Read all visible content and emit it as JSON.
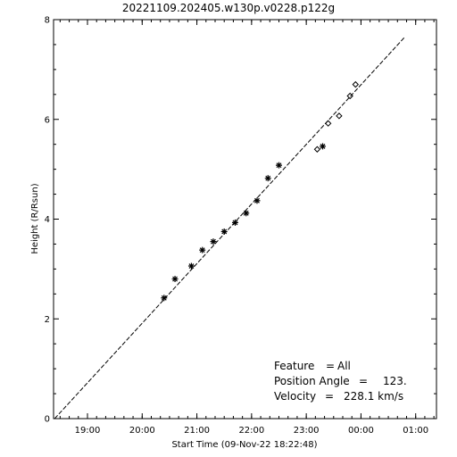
{
  "chart_data": {
    "type": "scatter",
    "title": "20221109.202405.w130p.v0228.p122g",
    "xlabel": "Start Time (09-Nov-22 18:22:48)",
    "ylabel": "Height (R/Rsun)",
    "x_tick_labels": [
      "19:00",
      "20:00",
      "21:00",
      "22:00",
      "23:00",
      "00:00",
      "01:00"
    ],
    "x_tick_times": [
      "2022-11-09 19:00",
      "2022-11-09 20:00",
      "2022-11-09 21:00",
      "2022-11-09 22:00",
      "2022-11-09 23:00",
      "2022-11-10 00:00",
      "2022-11-10 01:00"
    ],
    "xlim": [
      "2022-11-09 18:22:48",
      "2022-11-10 01:22:48"
    ],
    "ylim": [
      0,
      8
    ],
    "y_ticks": [
      0,
      2,
      4,
      6,
      8
    ],
    "grid": false,
    "series": [
      {
        "marker": "asterisk",
        "points": [
          {
            "x": "2022-11-09 20:24",
            "y": 2.42
          },
          {
            "x": "2022-11-09 20:36",
            "y": 2.8
          },
          {
            "x": "2022-11-09 20:54",
            "y": 3.06
          },
          {
            "x": "2022-11-09 21:06",
            "y": 3.38
          },
          {
            "x": "2022-11-09 21:18",
            "y": 3.55
          },
          {
            "x": "2022-11-09 21:30",
            "y": 3.75
          },
          {
            "x": "2022-11-09 21:42",
            "y": 3.93
          },
          {
            "x": "2022-11-09 21:54",
            "y": 4.12
          },
          {
            "x": "2022-11-09 22:06",
            "y": 4.37
          },
          {
            "x": "2022-11-09 22:18",
            "y": 4.82
          },
          {
            "x": "2022-11-09 22:30",
            "y": 5.08
          },
          {
            "x": "2022-11-09 23:18",
            "y": 5.46
          }
        ]
      },
      {
        "marker": "diamond",
        "points": [
          {
            "x": "2022-11-09 23:12",
            "y": 5.4
          },
          {
            "x": "2022-11-09 23:24",
            "y": 5.92
          },
          {
            "x": "2022-11-09 23:36",
            "y": 6.07
          },
          {
            "x": "2022-11-09 23:48",
            "y": 6.47
          },
          {
            "x": "2022-11-09 23:54",
            "y": 6.7
          }
        ]
      }
    ],
    "fit_line": {
      "style": "dashed",
      "points": [
        {
          "x": "2022-11-09 18:24",
          "y": 0.0
        },
        {
          "x": "2022-11-10 00:48",
          "y": 7.65
        }
      ]
    },
    "annotations": [
      {
        "label": "Feature",
        "sep": "=",
        "value": "All"
      },
      {
        "label": "Position Angle",
        "sep": "=",
        "value": "123."
      },
      {
        "label": "Velocity",
        "sep": "=",
        "value": "228.1 km/s"
      }
    ],
    "colors": {
      "background": "#ffffff",
      "ink": "#000000"
    }
  }
}
